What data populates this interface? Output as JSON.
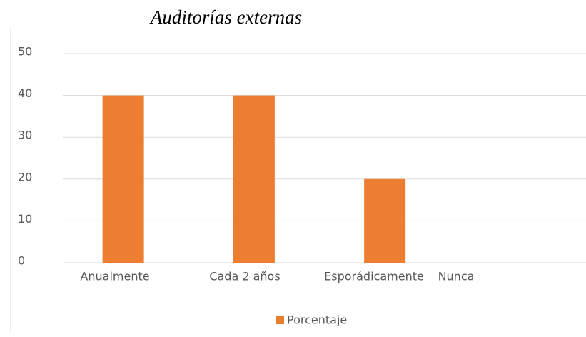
{
  "chart_data": {
    "type": "bar",
    "title": "Auditorías externas",
    "categories": [
      "Anualmente",
      "Cada 2 años",
      "Esporádicamente",
      "Nunca"
    ],
    "series": [
      {
        "name": "Porcentaje",
        "color": "#ed7d31",
        "values": [
          40,
          40,
          20,
          0
        ]
      }
    ],
    "ylim": [
      0,
      50
    ],
    "yticks": [
      0,
      10,
      20,
      30,
      40,
      50
    ],
    "grid": true,
    "legend": "bottom"
  }
}
